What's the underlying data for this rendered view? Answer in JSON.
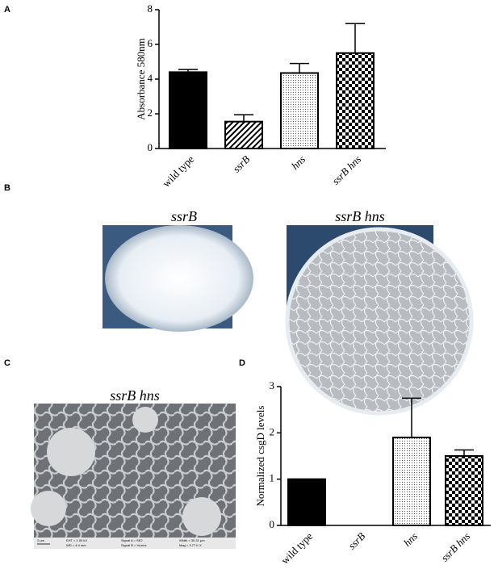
{
  "panel_labels": [
    "A",
    "B",
    "C",
    "D"
  ],
  "chart_data": [
    {
      "type": "bar",
      "y_label": "Absorbance 580nm",
      "categories": [
        "wild type",
        "ssrB",
        "hns",
        "ssrB hns"
      ],
      "values": [
        4.4,
        1.55,
        4.35,
        5.5
      ],
      "errors": [
        0.15,
        0.4,
        0.55,
        1.7
      ],
      "patterns": [
        "solid",
        "hatch",
        "dots",
        "checker"
      ],
      "color": "#000000",
      "ylim": [
        0,
        8
      ],
      "yticks": [
        0,
        2,
        4,
        6,
        8
      ]
    },
    {
      "type": "bar",
      "y_label": "Normalized csgD levels",
      "categories": [
        "wild type",
        "ssrB",
        "hns",
        "ssrB hns"
      ],
      "values": [
        1,
        0,
        1.9,
        1.5
      ],
      "errors": [
        0,
        0,
        0.85,
        0.13
      ],
      "patterns": [
        "solid",
        "solid",
        "dots",
        "checker"
      ],
      "color": "#000000",
      "ylim": [
        0,
        3
      ],
      "yticks": [
        0,
        1,
        2,
        3
      ]
    }
  ],
  "panel_b": {
    "left_title": "ssrB",
    "right_title": "ssrB hns"
  },
  "panel_c": {
    "title": "ssrB hns",
    "scale_bar": "2 μm",
    "footer": [
      "EHT = 1.00 kV",
      "WD = 4.4 mm",
      "Signal A = SE2",
      "Signal B = InLens",
      "Width = 30.31 μm",
      "Mag = 3.77 K X"
    ]
  }
}
